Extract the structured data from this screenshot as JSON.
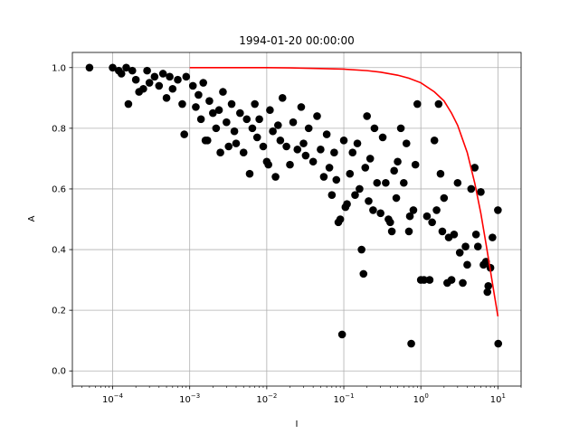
{
  "chart_data": {
    "type": "scatter",
    "title": "1994-01-20 00:00:00",
    "xlabel": "I",
    "ylabel": "A",
    "xscale": "log",
    "xlim": [
      3e-05,
      20
    ],
    "ylim": [
      -0.05,
      1.05
    ],
    "grid": true,
    "x_ticks": [
      0.0001,
      0.001,
      0.01,
      0.1,
      1,
      10
    ],
    "x_tick_labels": [
      {
        "base": "10",
        "exp": "−4"
      },
      {
        "base": "10",
        "exp": "−3"
      },
      {
        "base": "10",
        "exp": "−2"
      },
      {
        "base": "10",
        "exp": "−1"
      },
      {
        "base": "10",
        "exp": "0"
      },
      {
        "base": "10",
        "exp": "1"
      }
    ],
    "y_ticks": [
      0.0,
      0.2,
      0.4,
      0.6,
      0.8,
      1.0
    ],
    "y_tick_labels": [
      "0.0",
      "0.2",
      "0.4",
      "0.6",
      "0.8",
      "1.0"
    ],
    "colors": {
      "points": "#000000",
      "fit": "#ff0000",
      "grid": "#b0b0b0"
    },
    "series": [
      {
        "type": "scatter",
        "points": [
          [
            5e-05,
            1.0
          ],
          [
            0.0001,
            1.0
          ],
          [
            0.00012,
            0.99
          ],
          [
            0.00013,
            0.98
          ],
          [
            0.00015,
            1.0
          ],
          [
            0.00016,
            0.88
          ],
          [
            0.00018,
            0.99
          ],
          [
            0.0002,
            0.96
          ],
          [
            0.00022,
            0.92
          ],
          [
            0.00025,
            0.93
          ],
          [
            0.00028,
            0.99
          ],
          [
            0.0003,
            0.95
          ],
          [
            0.00035,
            0.97
          ],
          [
            0.0004,
            0.94
          ],
          [
            0.00045,
            0.98
          ],
          [
            0.0005,
            0.9
          ],
          [
            0.00055,
            0.97
          ],
          [
            0.0006,
            0.93
          ],
          [
            0.0007,
            0.96
          ],
          [
            0.0008,
            0.88
          ],
          [
            0.0009,
            0.97
          ],
          [
            0.00085,
            0.78
          ],
          [
            0.0011,
            0.94
          ],
          [
            0.0012,
            0.87
          ],
          [
            0.0013,
            0.91
          ],
          [
            0.0014,
            0.83
          ],
          [
            0.0015,
            0.95
          ],
          [
            0.0016,
            0.76
          ],
          [
            0.0017,
            0.76
          ],
          [
            0.0018,
            0.89
          ],
          [
            0.002,
            0.85
          ],
          [
            0.0022,
            0.8
          ],
          [
            0.0024,
            0.86
          ],
          [
            0.0025,
            0.72
          ],
          [
            0.0027,
            0.92
          ],
          [
            0.003,
            0.82
          ],
          [
            0.0032,
            0.74
          ],
          [
            0.0035,
            0.88
          ],
          [
            0.0038,
            0.79
          ],
          [
            0.004,
            0.75
          ],
          [
            0.0045,
            0.85
          ],
          [
            0.005,
            0.72
          ],
          [
            0.0055,
            0.83
          ],
          [
            0.006,
            0.65
          ],
          [
            0.0065,
            0.8
          ],
          [
            0.007,
            0.88
          ],
          [
            0.0075,
            0.77
          ],
          [
            0.008,
            0.83
          ],
          [
            0.009,
            0.74
          ],
          [
            0.01,
            0.69
          ],
          [
            0.0105,
            0.68
          ],
          [
            0.011,
            0.86
          ],
          [
            0.012,
            0.79
          ],
          [
            0.013,
            0.64
          ],
          [
            0.014,
            0.81
          ],
          [
            0.015,
            0.76
          ],
          [
            0.016,
            0.9
          ],
          [
            0.018,
            0.74
          ],
          [
            0.02,
            0.68
          ],
          [
            0.022,
            0.82
          ],
          [
            0.025,
            0.73
          ],
          [
            0.028,
            0.87
          ],
          [
            0.03,
            0.75
          ],
          [
            0.032,
            0.71
          ],
          [
            0.035,
            0.8
          ],
          [
            0.04,
            0.69
          ],
          [
            0.045,
            0.84
          ],
          [
            0.05,
            0.73
          ],
          [
            0.055,
            0.64
          ],
          [
            0.06,
            0.78
          ],
          [
            0.065,
            0.67
          ],
          [
            0.07,
            0.58
          ],
          [
            0.075,
            0.72
          ],
          [
            0.08,
            0.63
          ],
          [
            0.085,
            0.49
          ],
          [
            0.09,
            0.5
          ],
          [
            0.095,
            0.12
          ],
          [
            0.1,
            0.76
          ],
          [
            0.105,
            0.54
          ],
          [
            0.11,
            0.55
          ],
          [
            0.12,
            0.65
          ],
          [
            0.13,
            0.72
          ],
          [
            0.14,
            0.58
          ],
          [
            0.15,
            0.75
          ],
          [
            0.16,
            0.6
          ],
          [
            0.17,
            0.4
          ],
          [
            0.18,
            0.32
          ],
          [
            0.19,
            0.67
          ],
          [
            0.2,
            0.84
          ],
          [
            0.21,
            0.56
          ],
          [
            0.22,
            0.7
          ],
          [
            0.24,
            0.53
          ],
          [
            0.25,
            0.8
          ],
          [
            0.27,
            0.62
          ],
          [
            0.3,
            0.52
          ],
          [
            0.32,
            0.77
          ],
          [
            0.35,
            0.62
          ],
          [
            0.38,
            0.5
          ],
          [
            0.4,
            0.49
          ],
          [
            0.42,
            0.46
          ],
          [
            0.45,
            0.66
          ],
          [
            0.48,
            0.57
          ],
          [
            0.5,
            0.69
          ],
          [
            0.55,
            0.8
          ],
          [
            0.6,
            0.62
          ],
          [
            0.65,
            0.75
          ],
          [
            0.7,
            0.46
          ],
          [
            0.72,
            0.51
          ],
          [
            0.75,
            0.09
          ],
          [
            0.8,
            0.53
          ],
          [
            0.85,
            0.68
          ],
          [
            0.9,
            0.88
          ],
          [
            1.0,
            0.3
          ],
          [
            1.1,
            0.3
          ],
          [
            1.2,
            0.51
          ],
          [
            1.3,
            0.3
          ],
          [
            1.4,
            0.49
          ],
          [
            1.5,
            0.76
          ],
          [
            1.6,
            0.53
          ],
          [
            1.7,
            0.88
          ],
          [
            1.8,
            0.65
          ],
          [
            1.9,
            0.46
          ],
          [
            2.0,
            0.57
          ],
          [
            2.2,
            0.29
          ],
          [
            2.3,
            0.44
          ],
          [
            2.5,
            0.3
          ],
          [
            2.7,
            0.45
          ],
          [
            3.0,
            0.62
          ],
          [
            3.2,
            0.39
          ],
          [
            3.5,
            0.29
          ],
          [
            3.8,
            0.41
          ],
          [
            4.0,
            0.35
          ],
          [
            4.5,
            0.6
          ],
          [
            5.0,
            0.67
          ],
          [
            5.2,
            0.45
          ],
          [
            5.5,
            0.41
          ],
          [
            6.0,
            0.59
          ],
          [
            6.5,
            0.35
          ],
          [
            7.0,
            0.36
          ],
          [
            7.5,
            0.28
          ],
          [
            7.3,
            0.26
          ],
          [
            8.0,
            0.34
          ],
          [
            8.5,
            0.44
          ],
          [
            10.0,
            0.53
          ],
          [
            10.1,
            0.09
          ]
        ]
      },
      {
        "type": "line",
        "x": [
          0.001,
          0.002,
          0.005,
          0.01,
          0.02,
          0.05,
          0.1,
          0.2,
          0.3,
          0.5,
          0.7,
          1.0,
          1.5,
          2.0,
          2.5,
          3.0,
          4.0,
          5.0,
          6.0,
          7.0,
          8.0,
          9.0,
          10.0
        ],
        "y": [
          1.0,
          1.0,
          1.0,
          1.0,
          0.999,
          0.997,
          0.995,
          0.99,
          0.985,
          0.975,
          0.965,
          0.95,
          0.92,
          0.89,
          0.85,
          0.81,
          0.72,
          0.62,
          0.52,
          0.42,
          0.33,
          0.25,
          0.18
        ]
      }
    ]
  }
}
